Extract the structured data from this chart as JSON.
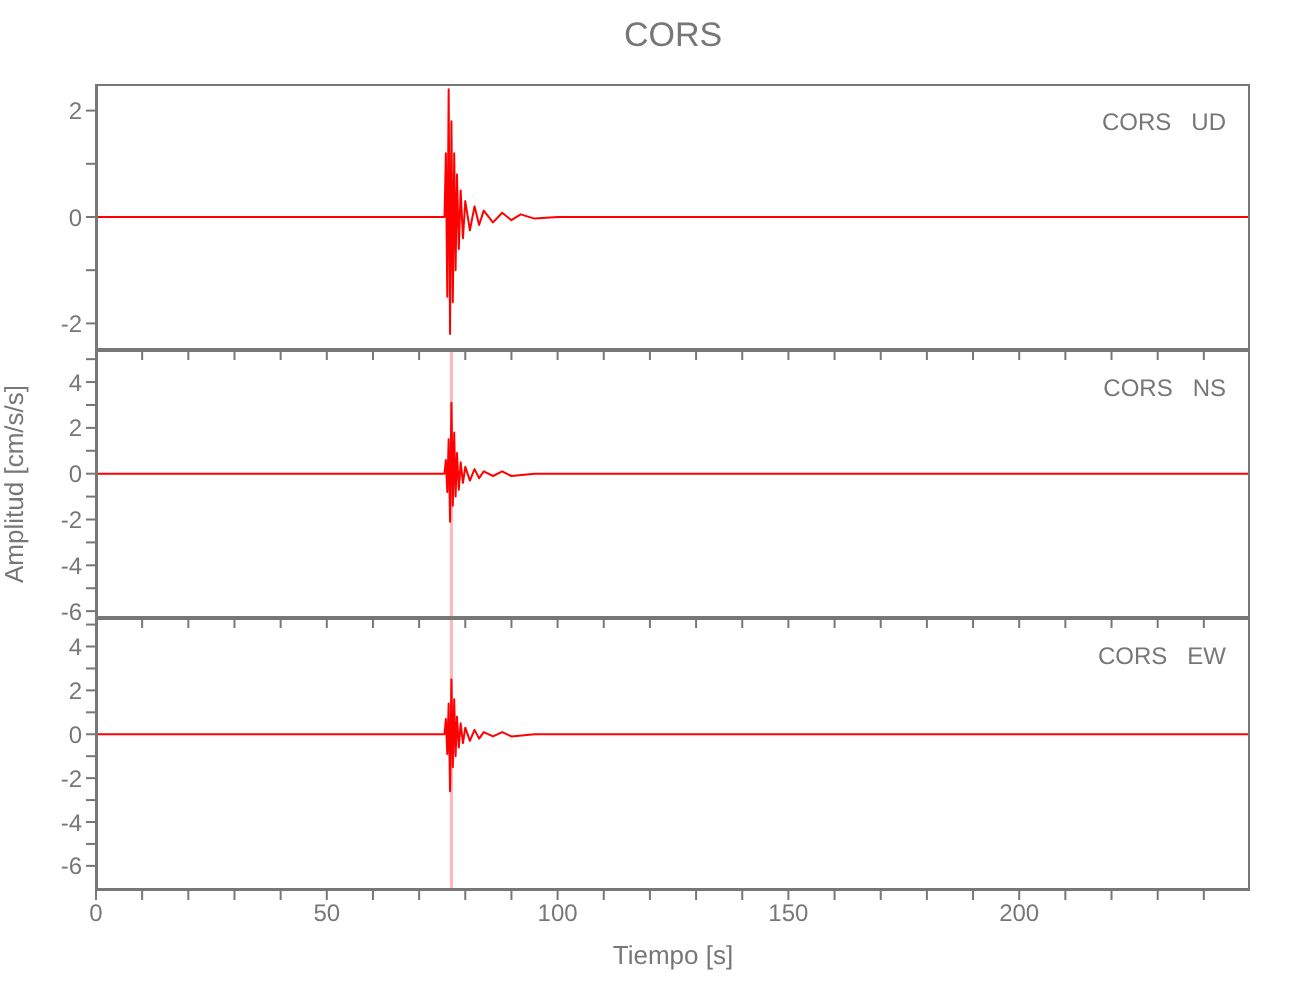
{
  "chart_data": [
    {
      "type": "line",
      "title": "CORS",
      "annotations": [
        "CORS   UD"
      ],
      "tick_labels": "y",
      "xlim": [
        0,
        250
      ],
      "ylim": [
        -2.5,
        2.5
      ],
      "xticks": [
        0,
        {
          "value": 10,
          "label": null
        },
        {
          "value": 20,
          "label": null
        },
        {
          "value": 30,
          "label": null
        },
        {
          "value": 40,
          "label": null
        },
        {
          "value": 50,
          "label": null
        },
        {
          "value": 60,
          "label": null
        },
        {
          "value": 70,
          "label": null
        },
        {
          "value": 80,
          "label": null
        },
        {
          "value": 90,
          "label": null
        },
        {
          "value": 100,
          "label": null
        },
        {
          "value": 110,
          "label": null
        },
        {
          "value": 120,
          "label": null
        },
        {
          "value": 130,
          "label": null
        },
        {
          "value": 140,
          "label": null
        },
        {
          "value": 150,
          "label": null
        },
        {
          "value": 160,
          "label": null
        },
        {
          "value": 170,
          "label": null
        },
        {
          "value": 180,
          "label": null
        },
        {
          "value": 190,
          "label": null
        },
        {
          "value": 200,
          "label": null
        },
        {
          "value": 210,
          "label": null
        },
        {
          "value": 220,
          "label": null
        },
        {
          "value": 230,
          "label": null
        },
        {
          "value": 240,
          "label": null
        }
      ],
      "yticks": [
        -2,
        {
          "value": -1,
          "label": null
        },
        0,
        {
          "value": 1,
          "label": null
        },
        2
      ],
      "series": [
        {
          "color": "#ff0000",
          "x": [
            0,
            75.5,
            75.8,
            76.1,
            76.4,
            76.7,
            77.0,
            77.3,
            77.6,
            77.9,
            78.2,
            78.6,
            79.0,
            79.5,
            80.0,
            81.0,
            82.0,
            83.0,
            84.0,
            86.0,
            88.0,
            90.0,
            92.0,
            95.0,
            100.0,
            250
          ],
          "values": [
            0,
            0,
            1.2,
            -1.5,
            2.4,
            -2.2,
            1.8,
            -1.6,
            1.2,
            -1.0,
            0.8,
            -0.6,
            0.5,
            -0.4,
            0.3,
            -0.25,
            0.2,
            -0.15,
            0.12,
            -0.1,
            0.08,
            -0.06,
            0.05,
            -0.03,
            0,
            0
          ]
        }
      ]
    },
    {
      "type": "line",
      "ylabel": "Amplitud  [cm/s/s]",
      "annotations": [
        "CORS   NS"
      ],
      "tick_labels": "y",
      "xlim": [
        0,
        250
      ],
      "ylim": [
        -6.3,
        5.4
      ],
      "xticks": [
        0,
        {
          "value": 10,
          "label": null
        },
        {
          "value": 20,
          "label": null
        },
        {
          "value": 30,
          "label": null
        },
        {
          "value": 40,
          "label": null
        },
        {
          "value": 50,
          "label": null
        },
        {
          "value": 60,
          "label": null
        },
        {
          "value": 70,
          "label": null
        },
        {
          "value": 80,
          "label": null
        },
        {
          "value": 90,
          "label": null
        },
        {
          "value": 100,
          "label": null
        },
        {
          "value": 110,
          "label": null
        },
        {
          "value": 120,
          "label": null
        },
        {
          "value": 130,
          "label": null
        },
        {
          "value": 140,
          "label": null
        },
        {
          "value": 150,
          "label": null
        },
        {
          "value": 160,
          "label": null
        },
        {
          "value": 170,
          "label": null
        },
        {
          "value": 180,
          "label": null
        },
        {
          "value": 190,
          "label": null
        },
        {
          "value": 200,
          "label": null
        },
        {
          "value": 210,
          "label": null
        },
        {
          "value": 220,
          "label": null
        },
        {
          "value": 230,
          "label": null
        },
        {
          "value": 240,
          "label": null
        }
      ],
      "yticks": [
        -6,
        {
          "value": -5,
          "label": null
        },
        -4,
        {
          "value": -3,
          "label": null
        },
        -2,
        {
          "value": -1,
          "label": null
        },
        0,
        {
          "value": 1,
          "label": null
        },
        2,
        {
          "value": 3,
          "label": null
        },
        4,
        {
          "value": 5,
          "label": null
        }
      ],
      "ref_lines": [
        {
          "axis": "x",
          "value": 77,
          "color": "#ffb6b6"
        }
      ],
      "series": [
        {
          "color": "#ff0000",
          "x": [
            0,
            75.5,
            75.8,
            76.1,
            76.4,
            76.7,
            77.0,
            77.3,
            77.6,
            77.9,
            78.2,
            78.6,
            79.0,
            79.5,
            80.0,
            81.0,
            82.0,
            83.0,
            84.0,
            86.0,
            88.0,
            90.0,
            95.0,
            250
          ],
          "values": [
            0,
            0,
            0.6,
            -0.8,
            1.5,
            -2.1,
            3.1,
            -1.4,
            1.8,
            -1.0,
            0.9,
            -0.7,
            0.5,
            -0.4,
            0.3,
            -0.3,
            0.2,
            -0.2,
            0.1,
            -0.1,
            0.1,
            -0.1,
            0,
            0
          ]
        }
      ]
    },
    {
      "type": "line",
      "xlabel": "Tiempo  [s]",
      "annotations": [
        "CORS   EW"
      ],
      "xlim": [
        0,
        250
      ],
      "ylim": [
        -7.1,
        5.3
      ],
      "xticks": [
        0,
        {
          "value": 10,
          "label": null
        },
        {
          "value": 20,
          "label": null
        },
        {
          "value": 30,
          "label": null
        },
        {
          "value": 40,
          "label": null
        },
        50,
        {
          "value": 60,
          "label": null
        },
        {
          "value": 70,
          "label": null
        },
        {
          "value": 80,
          "label": null
        },
        {
          "value": 90,
          "label": null
        },
        100,
        {
          "value": 110,
          "label": null
        },
        {
          "value": 120,
          "label": null
        },
        {
          "value": 130,
          "label": null
        },
        {
          "value": 140,
          "label": null
        },
        150,
        {
          "value": 160,
          "label": null
        },
        {
          "value": 170,
          "label": null
        },
        {
          "value": 180,
          "label": null
        },
        {
          "value": 190,
          "label": null
        },
        200,
        {
          "value": 210,
          "label": null
        },
        {
          "value": 220,
          "label": null
        },
        {
          "value": 230,
          "label": null
        },
        {
          "value": 240,
          "label": null
        }
      ],
      "yticks": [
        -6,
        {
          "value": -5,
          "label": null
        },
        -4,
        {
          "value": -3,
          "label": null
        },
        -2,
        {
          "value": -1,
          "label": null
        },
        0,
        {
          "value": 1,
          "label": null
        },
        2,
        {
          "value": 3,
          "label": null
        },
        4,
        {
          "value": 5,
          "label": null
        }
      ],
      "ref_lines": [
        {
          "axis": "x",
          "value": 77,
          "color": "#ffb6b6"
        }
      ],
      "series": [
        {
          "color": "#ff0000",
          "x": [
            0,
            75.5,
            75.8,
            76.1,
            76.4,
            76.7,
            77.0,
            77.3,
            77.6,
            77.9,
            78.2,
            78.6,
            79.0,
            79.5,
            80.0,
            81.0,
            82.0,
            83.0,
            84.0,
            86.0,
            88.0,
            90.0,
            95.0,
            250
          ],
          "values": [
            0,
            0,
            0.7,
            -0.9,
            1.4,
            -2.6,
            2.5,
            -1.5,
            1.6,
            -1.0,
            0.8,
            -0.6,
            0.5,
            -0.4,
            0.3,
            -0.3,
            0.2,
            -0.2,
            0.1,
            -0.1,
            0.1,
            -0.1,
            0,
            0
          ]
        }
      ]
    }
  ]
}
